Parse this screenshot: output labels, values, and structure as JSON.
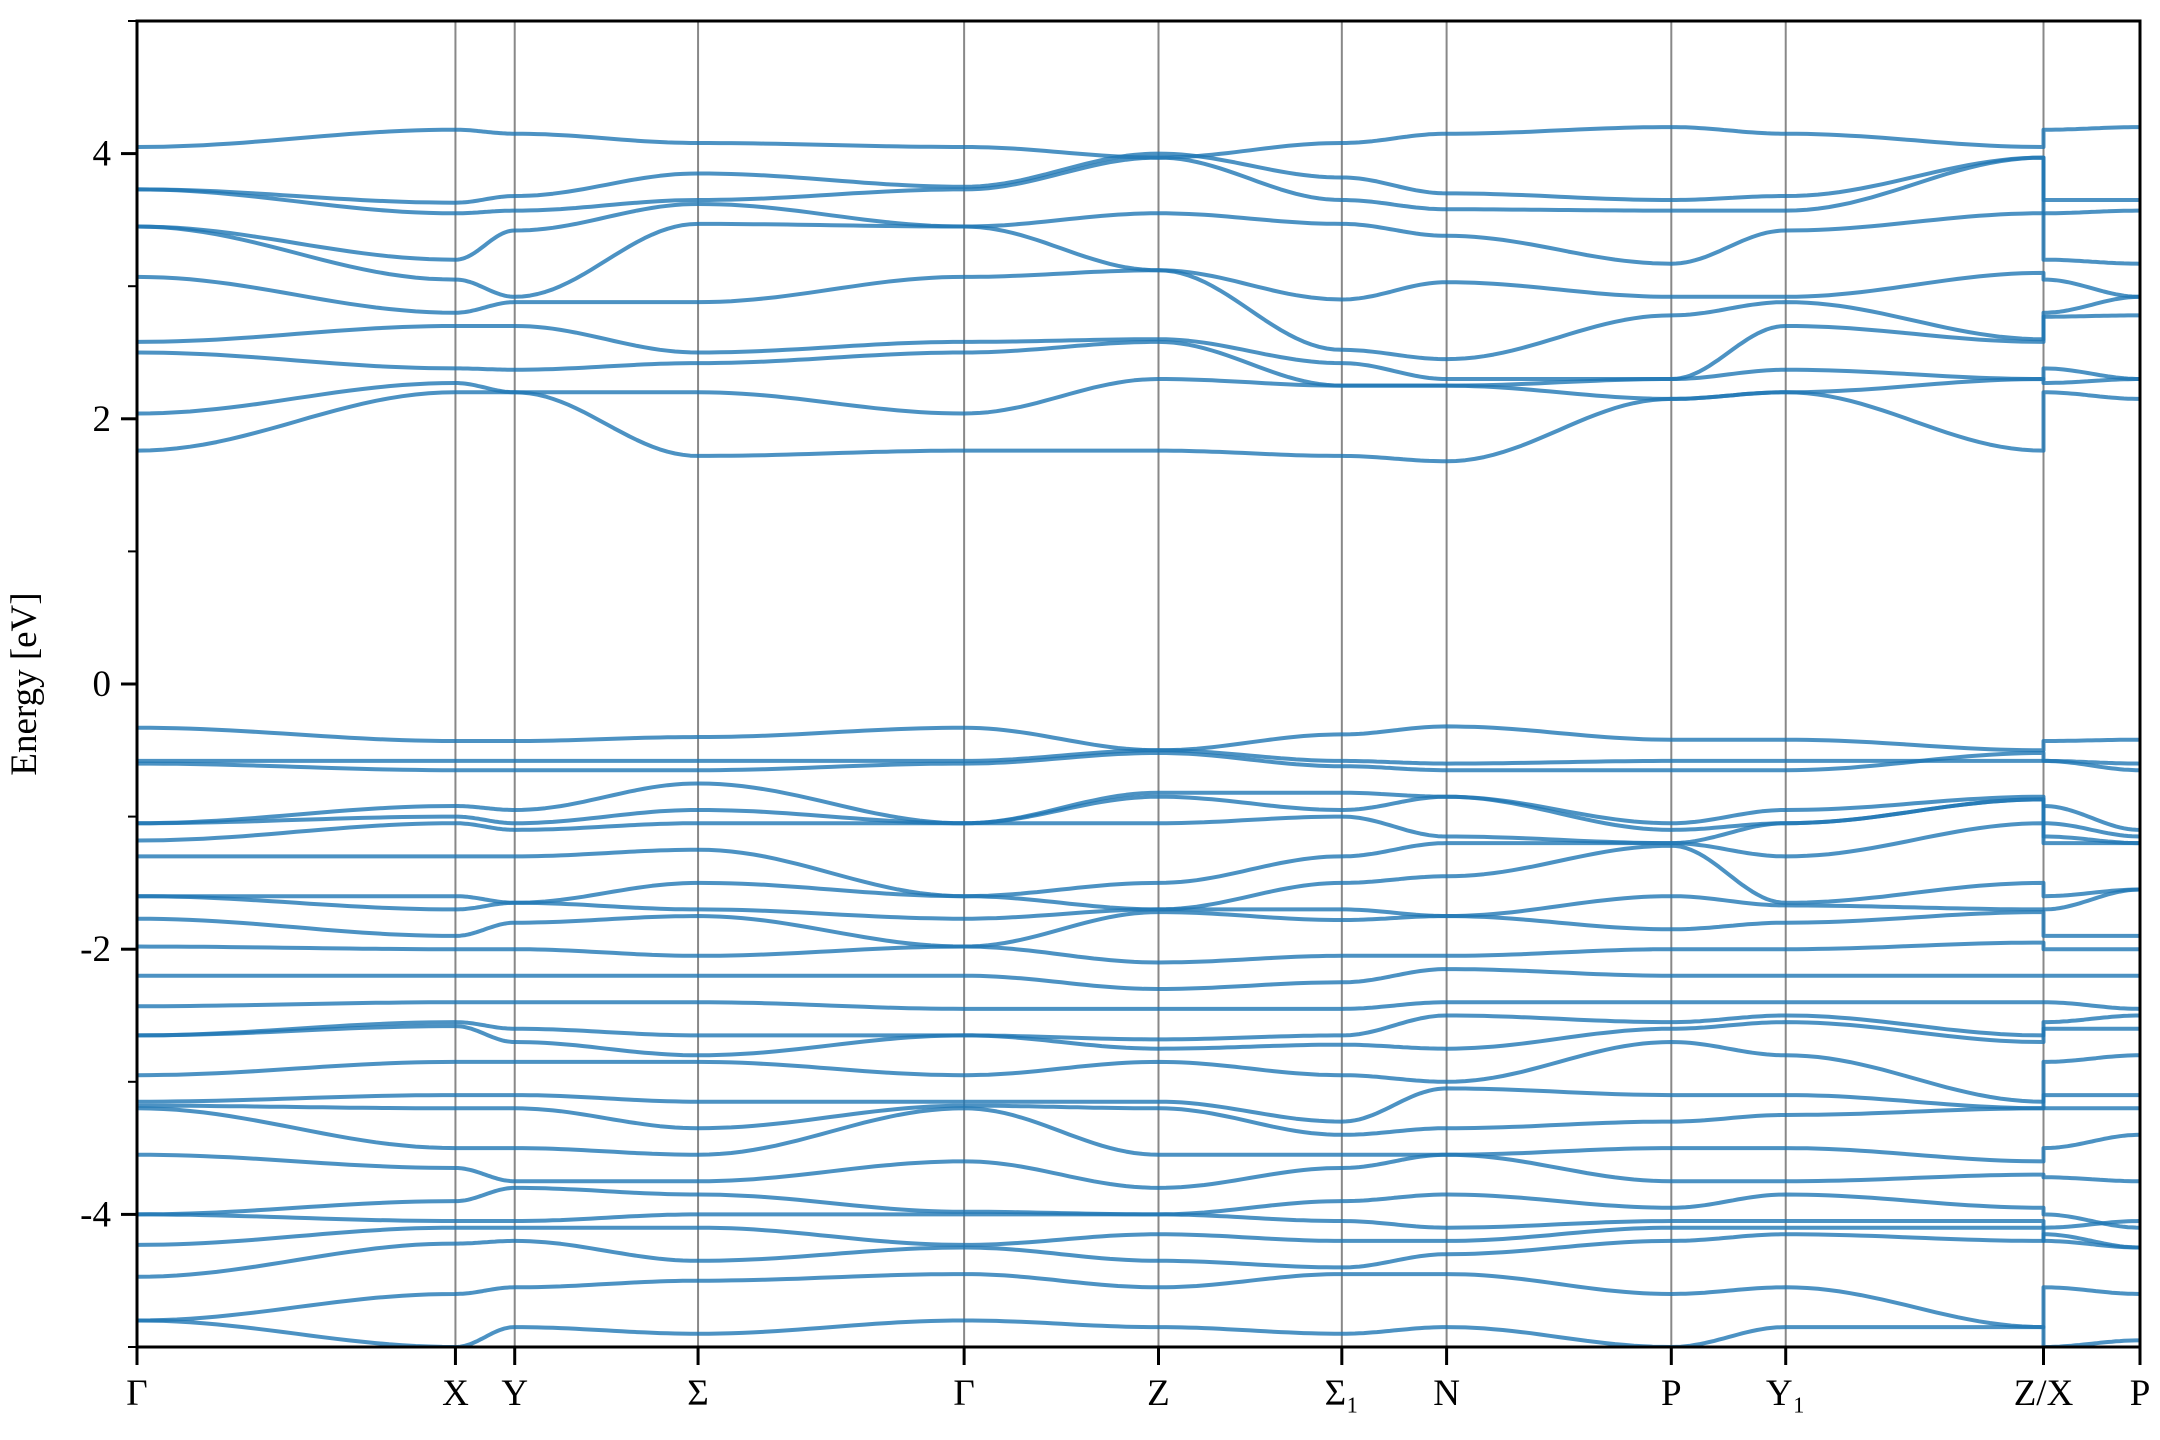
{
  "chart_data": {
    "type": "line",
    "title": "",
    "xlabel": "",
    "ylabel": "Energy [eV]",
    "ylim": [
      -5,
      5
    ],
    "yticks": [
      -4,
      -2,
      0,
      2,
      4
    ],
    "yminor_ticks": [
      -5,
      -3,
      -1,
      1,
      3,
      5
    ],
    "grid": "vertical lines at high-symmetry points",
    "line_color": "#1f77b4",
    "high_symmetry_points": [
      {
        "label": "Γ",
        "k": 0
      },
      {
        "label": "X",
        "k": 2.31
      },
      {
        "label": "Y",
        "k": 2.74
      },
      {
        "label": "Σ",
        "k": 4.07
      },
      {
        "label": "Γ",
        "k": 6.0
      },
      {
        "label": "Z",
        "k": 7.41
      },
      {
        "label": "Σ₁",
        "k": 8.74
      },
      {
        "label": "N",
        "k": 9.5
      },
      {
        "label": "P",
        "k": 11.13
      },
      {
        "label": "Y₁",
        "k": 11.96
      },
      {
        "label": "Z/X",
        "k": 13.83
      },
      {
        "label": "P",
        "k": 14.53
      }
    ],
    "band_k": [
      0,
      2.31,
      2.74,
      4.07,
      6.0,
      7.41,
      8.74,
      9.5,
      11.13,
      11.96,
      13.83,
      13.83,
      14.53
    ],
    "bands": [
      [
        4.05,
        4.18,
        4.15,
        4.08,
        4.05,
        3.97,
        4.08,
        4.15,
        4.2,
        4.15,
        4.05,
        4.18,
        4.2
      ],
      [
        3.73,
        3.63,
        3.68,
        3.85,
        3.75,
        4.0,
        3.82,
        3.7,
        3.65,
        3.68,
        3.97,
        3.65,
        3.65
      ],
      [
        3.73,
        3.55,
        3.57,
        3.65,
        3.73,
        3.97,
        3.65,
        3.58,
        3.57,
        3.57,
        3.97,
        3.55,
        3.57
      ],
      [
        3.45,
        3.2,
        3.42,
        3.62,
        3.45,
        3.55,
        3.47,
        3.38,
        3.17,
        3.42,
        3.55,
        3.2,
        3.17
      ],
      [
        3.45,
        3.05,
        2.92,
        3.47,
        3.45,
        3.12,
        2.9,
        3.03,
        2.92,
        2.92,
        3.1,
        3.05,
        2.92
      ],
      [
        3.07,
        2.8,
        2.88,
        2.88,
        3.07,
        3.12,
        2.52,
        2.45,
        2.78,
        2.88,
        2.6,
        2.8,
        2.92
      ],
      [
        2.58,
        2.7,
        2.7,
        2.5,
        2.58,
        2.6,
        2.42,
        2.3,
        2.3,
        2.7,
        2.58,
        2.77,
        2.78
      ],
      [
        2.5,
        2.38,
        2.37,
        2.42,
        2.5,
        2.58,
        2.25,
        2.25,
        2.3,
        2.37,
        2.3,
        2.38,
        2.3
      ],
      [
        2.04,
        2.27,
        2.2,
        2.2,
        2.04,
        2.3,
        2.25,
        2.25,
        2.15,
        2.2,
        2.3,
        2.27,
        2.3
      ],
      [
        1.76,
        2.2,
        2.2,
        1.72,
        1.76,
        1.76,
        1.72,
        1.68,
        2.15,
        2.2,
        1.76,
        2.2,
        2.15
      ],
      [
        -0.33,
        -0.43,
        -0.43,
        -0.4,
        -0.33,
        -0.5,
        -0.38,
        -0.32,
        -0.42,
        -0.42,
        -0.5,
        -0.43,
        -0.42
      ],
      [
        -0.58,
        -0.58,
        -0.58,
        -0.58,
        -0.58,
        -0.5,
        -0.58,
        -0.6,
        -0.58,
        -0.58,
        -0.58,
        -0.58,
        -0.6
      ],
      [
        -0.6,
        -0.65,
        -0.65,
        -0.65,
        -0.6,
        -0.52,
        -0.62,
        -0.65,
        -0.65,
        -0.65,
        -0.52,
        -0.58,
        -0.65
      ],
      [
        -1.05,
        -0.92,
        -0.95,
        -0.75,
        -1.05,
        -0.82,
        -0.82,
        -0.85,
        -1.05,
        -0.95,
        -0.85,
        -0.92,
        -1.1
      ],
      [
        -1.05,
        -1.0,
        -1.05,
        -0.95,
        -1.05,
        -0.85,
        -0.95,
        -0.85,
        -1.1,
        -1.05,
        -0.87,
        -1.05,
        -1.15
      ],
      [
        -1.18,
        -1.05,
        -1.1,
        -1.05,
        -1.05,
        -1.05,
        -1.0,
        -1.15,
        -1.2,
        -1.05,
        -0.87,
        -1.15,
        -1.2
      ],
      [
        -1.3,
        -1.3,
        -1.3,
        -1.25,
        -1.6,
        -1.5,
        -1.3,
        -1.2,
        -1.2,
        -1.3,
        -1.05,
        -1.2,
        -1.2
      ],
      [
        -1.6,
        -1.6,
        -1.65,
        -1.5,
        -1.6,
        -1.7,
        -1.5,
        -1.45,
        -1.22,
        -1.65,
        -1.5,
        -1.6,
        -1.55
      ],
      [
        -1.6,
        -1.7,
        -1.65,
        -1.7,
        -1.77,
        -1.7,
        -1.7,
        -1.75,
        -1.6,
        -1.67,
        -1.7,
        -1.7,
        -1.55
      ],
      [
        -1.77,
        -1.9,
        -1.8,
        -1.75,
        -1.98,
        -1.72,
        -1.78,
        -1.75,
        -1.85,
        -1.8,
        -1.72,
        -1.9,
        -1.9
      ],
      [
        -1.98,
        -2.0,
        -2.0,
        -2.05,
        -1.98,
        -2.1,
        -2.05,
        -2.05,
        -2.0,
        -2.0,
        -1.95,
        -2.0,
        -2.0
      ],
      [
        -2.2,
        -2.2,
        -2.2,
        -2.2,
        -2.2,
        -2.3,
        -2.25,
        -2.15,
        -2.2,
        -2.2,
        -2.2,
        -2.2,
        -2.2
      ],
      [
        -2.43,
        -2.4,
        -2.4,
        -2.4,
        -2.45,
        -2.45,
        -2.45,
        -2.4,
        -2.4,
        -2.4,
        -2.4,
        -2.4,
        -2.45
      ],
      [
        -2.65,
        -2.55,
        -2.6,
        -2.65,
        -2.65,
        -2.68,
        -2.65,
        -2.5,
        -2.55,
        -2.5,
        -2.65,
        -2.55,
        -2.5
      ],
      [
        -2.65,
        -2.58,
        -2.7,
        -2.8,
        -2.65,
        -2.75,
        -2.72,
        -2.75,
        -2.6,
        -2.55,
        -2.7,
        -2.6,
        -2.6
      ],
      [
        -2.95,
        -2.85,
        -2.85,
        -2.85,
        -2.95,
        -2.85,
        -2.95,
        -3.0,
        -2.7,
        -2.8,
        -3.15,
        -2.85,
        -2.8
      ],
      [
        -3.15,
        -3.1,
        -3.1,
        -3.15,
        -3.15,
        -3.15,
        -3.3,
        -3.05,
        -3.1,
        -3.1,
        -3.2,
        -3.1,
        -3.1
      ],
      [
        -3.18,
        -3.2,
        -3.2,
        -3.35,
        -3.18,
        -3.2,
        -3.4,
        -3.35,
        -3.3,
        -3.25,
        -3.2,
        -3.2,
        -3.2
      ],
      [
        -3.2,
        -3.5,
        -3.5,
        -3.55,
        -3.2,
        -3.55,
        -3.55,
        -3.55,
        -3.5,
        -3.5,
        -3.6,
        -3.5,
        -3.4
      ],
      [
        -3.55,
        -3.65,
        -3.75,
        -3.75,
        -3.6,
        -3.8,
        -3.65,
        -3.55,
        -3.75,
        -3.75,
        -3.7,
        -3.72,
        -3.75
      ],
      [
        -4.0,
        -3.9,
        -3.8,
        -3.85,
        -3.98,
        -4.0,
        -3.9,
        -3.85,
        -3.95,
        -3.85,
        -3.95,
        -4.0,
        -4.1
      ],
      [
        -4.0,
        -4.05,
        -4.05,
        -4.0,
        -4.0,
        -4.0,
        -4.05,
        -4.1,
        -4.05,
        -4.05,
        -4.05,
        -4.1,
        -4.05
      ],
      [
        -4.23,
        -4.1,
        -4.1,
        -4.1,
        -4.23,
        -4.15,
        -4.2,
        -4.2,
        -4.1,
        -4.1,
        -4.1,
        -4.2,
        -4.25
      ],
      [
        -4.47,
        -4.22,
        -4.2,
        -4.35,
        -4.25,
        -4.35,
        -4.4,
        -4.3,
        -4.2,
        -4.15,
        -4.2,
        -4.15,
        -4.25
      ],
      [
        -4.8,
        -4.6,
        -4.55,
        -4.5,
        -4.45,
        -4.55,
        -4.45,
        -4.45,
        -4.6,
        -4.55,
        -4.85,
        -4.55,
        -4.6
      ],
      [
        -4.8,
        -5.0,
        -4.85,
        -4.9,
        -4.8,
        -4.85,
        -4.9,
        -4.85,
        -5.0,
        -4.85,
        -4.85,
        -5.0,
        -4.95
      ]
    ]
  }
}
